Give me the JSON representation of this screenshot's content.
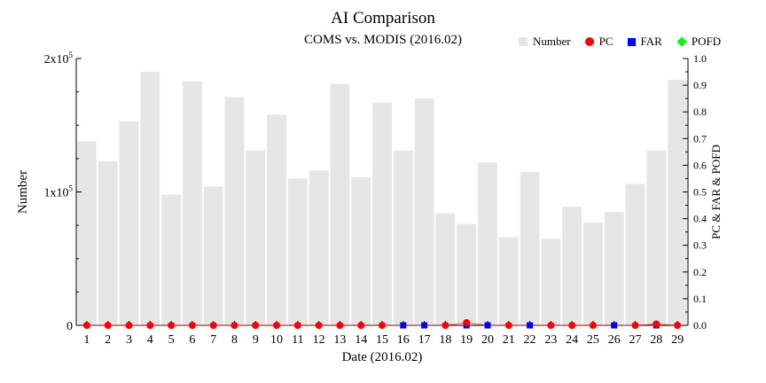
{
  "chart_data": {
    "type": "bar",
    "title": "AI Comparison",
    "subtitle": "COMS vs. MODIS (2016.02)",
    "xlabel": "Date (2016.02)",
    "ylabel": "Number",
    "y2label": "PC & FAR & POFD",
    "categories": [
      "1",
      "2",
      "3",
      "4",
      "5",
      "6",
      "7",
      "8",
      "9",
      "10",
      "11",
      "12",
      "13",
      "14",
      "15",
      "16",
      "17",
      "18",
      "19",
      "20",
      "21",
      "22",
      "23",
      "24",
      "25",
      "26",
      "27",
      "28",
      "29"
    ],
    "ylim": [
      0,
      200000
    ],
    "y2lim": [
      0,
      1.0
    ],
    "yticks": [
      {
        "value": 0,
        "base": "0",
        "exp": ""
      },
      {
        "value": 100000,
        "base": "1x10",
        "exp": "5"
      },
      {
        "value": 200000,
        "base": "2x10",
        "exp": "5"
      }
    ],
    "y2ticks": [
      "0.0",
      "0.1",
      "0.2",
      "0.3",
      "0.4",
      "0.5",
      "0.6",
      "0.7",
      "0.8",
      "0.9",
      "1.0"
    ],
    "legend_position": "top-right",
    "grid": false,
    "series": [
      {
        "name": "Number",
        "kind": "bar",
        "axis": "left",
        "color": "#e6e6e6",
        "values": [
          138000,
          123000,
          153000,
          190000,
          98000,
          183000,
          104000,
          171000,
          131000,
          158000,
          110000,
          116000,
          181000,
          111000,
          167000,
          131000,
          170000,
          84000,
          76000,
          122000,
          66000,
          115000,
          65000,
          89000,
          77000,
          85000,
          106000,
          131000,
          184000
        ]
      },
      {
        "name": "PC",
        "kind": "line-marker",
        "axis": "right",
        "color": "#ff0000",
        "marker": "circle",
        "values": [
          0,
          0,
          0,
          0,
          0,
          0,
          0,
          0,
          0,
          0,
          0,
          0,
          0,
          0,
          0,
          0,
          0,
          0,
          0.01,
          0,
          0,
          0,
          0,
          0,
          0,
          0,
          0,
          0.005,
          0
        ]
      },
      {
        "name": "FAR",
        "kind": "line-marker",
        "axis": "right",
        "color": "#0000ff",
        "marker": "square",
        "values": [
          0,
          0,
          0,
          0,
          0,
          0,
          0,
          0,
          0,
          0,
          0,
          0,
          0,
          0,
          0,
          0,
          0,
          0,
          0,
          0,
          0,
          0,
          0,
          0,
          0,
          0,
          0,
          0,
          0
        ]
      },
      {
        "name": "POFD",
        "kind": "line-marker",
        "axis": "right",
        "color": "#00ff00",
        "marker": "diamond",
        "values": [
          0,
          0,
          0,
          0,
          0,
          0,
          0,
          0,
          0,
          0,
          0,
          0,
          0,
          0,
          0,
          0,
          0,
          0,
          0,
          0,
          0,
          0,
          0,
          0,
          0,
          0,
          0,
          0,
          0
        ]
      }
    ],
    "far_visible_days": [
      "16",
      "17",
      "19",
      "20",
      "22",
      "26",
      "28"
    ]
  }
}
